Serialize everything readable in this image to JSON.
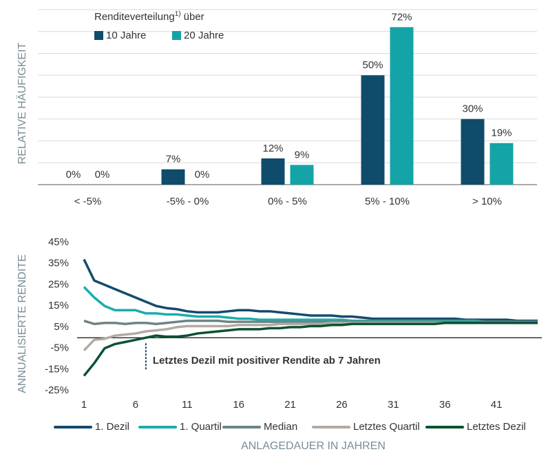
{
  "chart_data": [
    {
      "type": "bar",
      "y_label": "RELATIVE HÄUFIGKEIT",
      "legend_title": "Renditeverteilung",
      "legend_title_note": "1)",
      "legend_title_suffix": "über",
      "categories": [
        "< -5%",
        "-5% - 0%",
        "0% - 5%",
        "5% - 10%",
        "> 10%"
      ],
      "series": [
        {
          "name": "10 Jahre",
          "color": "#0f4c6b",
          "values": [
            0,
            7,
            12,
            50,
            30
          ],
          "value_labels": [
            "0%",
            "7%",
            "12%",
            "50%",
            "30%"
          ]
        },
        {
          "name": "20 Jahre",
          "color": "#14a3a6",
          "values": [
            0,
            0,
            9,
            72,
            19
          ],
          "value_labels": [
            "0%",
            "0%",
            "9%",
            "72%",
            "19%"
          ]
        }
      ],
      "ylim": [
        0,
        80
      ],
      "yticks": [
        0,
        10,
        20,
        30,
        40,
        50,
        60,
        70,
        80
      ],
      "grid": true
    },
    {
      "type": "line",
      "y_label": "ANNUALISIERTE RENDITE",
      "x_label": "ANLAGEDAUER IN JAHREN",
      "x": [
        1,
        2,
        3,
        4,
        5,
        6,
        7,
        8,
        9,
        10,
        11,
        12,
        13,
        14,
        15,
        16,
        17,
        18,
        19,
        20,
        21,
        22,
        23,
        24,
        25,
        26,
        27,
        28,
        29,
        30,
        31,
        32,
        33,
        34,
        35,
        36,
        37,
        38,
        39,
        40,
        41,
        42,
        43,
        44,
        45
      ],
      "xlim": [
        1,
        45
      ],
      "xticks": [
        1,
        6,
        11,
        16,
        21,
        26,
        31,
        36,
        41
      ],
      "ylim": [
        -25,
        45
      ],
      "yticks": [
        {
          "value": -25,
          "label": "-25%"
        },
        {
          "value": -15,
          "label": "-15%"
        },
        {
          "value": -5,
          "label": "-5%"
        },
        {
          "value": 5,
          "label": "5%"
        },
        {
          "value": 15,
          "label": "15%"
        },
        {
          "value": 25,
          "label": "25%"
        },
        {
          "value": 35,
          "label": "35%"
        },
        {
          "value": 45,
          "label": "45%"
        }
      ],
      "hlines": [
        0
      ],
      "annotation": {
        "text": "Letztes Dezil mit positiver Rendite ab 7 Jahren",
        "x": 7
      },
      "series": [
        {
          "name": "1. Dezil",
          "color": "#144a6e",
          "values": [
            37,
            27,
            25,
            23,
            21,
            19,
            17,
            15,
            14,
            13.5,
            12.5,
            12,
            12,
            12,
            12.5,
            13,
            13,
            12.5,
            12.5,
            12,
            11.5,
            11,
            10.5,
            10.5,
            10.5,
            10,
            10,
            9.5,
            9,
            9,
            9,
            9,
            9,
            9,
            9,
            9,
            9,
            8.5,
            8.5,
            8.5,
            8.5,
            8.5,
            8,
            8,
            8
          ]
        },
        {
          "name": "1. Quartil",
          "color": "#1aacad",
          "values": [
            24,
            19,
            15,
            13,
            13,
            13,
            11.5,
            11.5,
            11,
            11,
            10.5,
            10,
            10,
            10,
            9.5,
            9,
            9,
            8.5,
            8.5,
            8.5,
            8.5,
            8.5,
            8.5,
            8.5,
            8.5,
            8.5,
            8,
            8,
            8,
            8,
            8,
            8,
            8,
            8,
            8,
            8,
            8,
            8,
            8,
            7.5,
            7.5,
            7.5,
            7.5,
            7.5,
            7.5
          ]
        },
        {
          "name": "Median",
          "color": "#6e8484",
          "values": [
            8,
            6.5,
            7,
            7,
            6.5,
            7,
            7,
            6.5,
            7,
            7.5,
            8,
            8,
            8,
            8,
            7.5,
            7.5,
            7.5,
            7.5,
            7.5,
            7.5,
            7.5,
            7.5,
            7.5,
            7.5,
            7.5,
            7.5,
            7.5,
            7.5,
            7.5,
            7.5,
            7.5,
            7.5,
            7.5,
            7.5,
            7.5,
            7.5,
            7.5,
            7.5,
            7.5,
            7.5,
            7.5,
            7.5,
            7.5,
            7.5,
            7.5
          ]
        },
        {
          "name": "Letztes Quartil",
          "color": "#b3aaa0",
          "values": [
            -6,
            -1,
            -0.5,
            1,
            1.5,
            2,
            3,
            3.5,
            4,
            5,
            5.5,
            5.5,
            5.5,
            5.5,
            5.5,
            6,
            6,
            6,
            6,
            6.5,
            6.5,
            6.5,
            6.5,
            6.5,
            7,
            7,
            7,
            7,
            7,
            7,
            7,
            7,
            7,
            7,
            7,
            7,
            7,
            7,
            7,
            7,
            7,
            7,
            7,
            7,
            7
          ]
        },
        {
          "name": "Letztes Dezil",
          "color": "#0b5132",
          "values": [
            -18,
            -12,
            -5,
            -3,
            -2,
            -1,
            0,
            1,
            0.5,
            0.5,
            1,
            2,
            2.5,
            3,
            3.5,
            4,
            4,
            4,
            4.5,
            4.5,
            5,
            5,
            5.5,
            5.5,
            6,
            6,
            6.5,
            6.5,
            6.5,
            6.5,
            6.5,
            6.5,
            6.5,
            6.5,
            6.5,
            7,
            7,
            7,
            7,
            7,
            7,
            7,
            7,
            7,
            7
          ]
        }
      ]
    }
  ]
}
